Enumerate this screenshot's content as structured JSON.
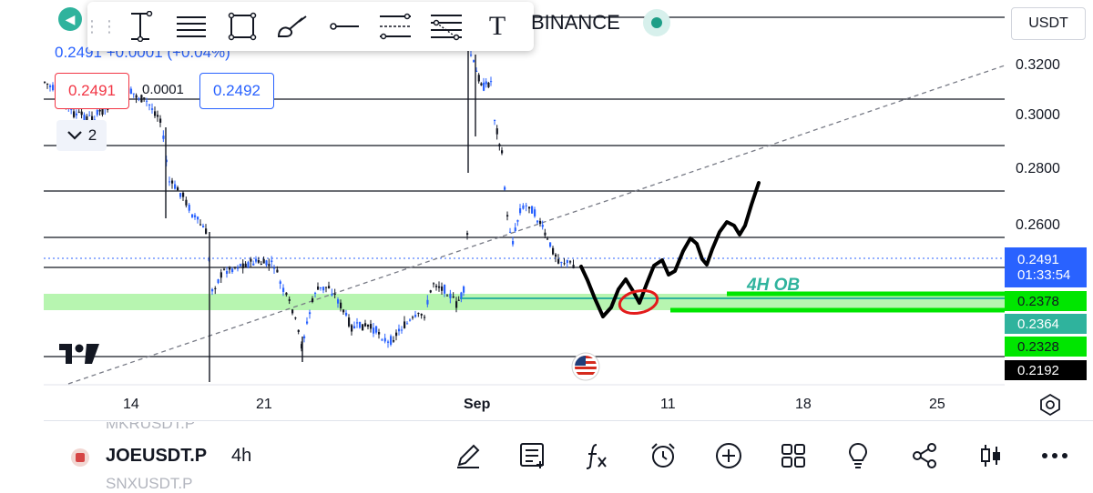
{
  "toolbar": {
    "tools": [
      "vertical-cursor-icon",
      "horizontal-lines-icon",
      "rectangle-icon",
      "brush-icon",
      "horizontal-ray-icon",
      "parallel-channel-icon",
      "fib-retracement-icon",
      "text-icon"
    ],
    "text_tool_glyph": "T",
    "drag_glyph": "⋮⋮"
  },
  "header": {
    "exchange": "BINANCE",
    "currency": "USDT",
    "price_change": "0.2491 +0.0001 (+0.04%)",
    "sell_price": "0.2491",
    "spread": "0.0001",
    "buy_price": "0.2492",
    "indicator_count": "2"
  },
  "price_axis": {
    "ticks": [
      "0.3200",
      "0.3000",
      "0.2800",
      "0.2600"
    ],
    "labels": [
      {
        "value": "0.2491",
        "sub": "01:33:54",
        "bg": "#2962ff",
        "color": "#ffffff"
      },
      {
        "value": "0.2378",
        "bg": "#00e600",
        "color": "#131722"
      },
      {
        "value": "0.2364",
        "bg": "#2fb39d",
        "color": "#ffffff"
      },
      {
        "value": "0.2328",
        "bg": "#00e600",
        "color": "#131722"
      },
      {
        "value": "0.2192",
        "bg": "#000000",
        "color": "#ffffff"
      }
    ]
  },
  "time_axis": {
    "labels": [
      "14",
      "21",
      "Sep",
      "11",
      "18",
      "25"
    ]
  },
  "annotations": {
    "ob_label": "4H OB",
    "ob_color": "#00e600",
    "zone_color": "#b7f5b0"
  },
  "bottom_bar": {
    "prev_symbol": "MKRUSDT.P",
    "symbol": "JOEUSDT.P",
    "interval": "4h",
    "next_symbol": "SNXUSDT.P",
    "icons": [
      "draw-icon",
      "add-note-icon",
      "indicators-icon",
      "alert-icon",
      "compare-icon",
      "layouts-icon",
      "ideas-icon",
      "share-icon",
      "chart-type-icon",
      "more-icon"
    ]
  },
  "colors": {
    "up": "#2962ff",
    "down": "#131722",
    "accent": "#2962ff",
    "sell": "#f23645"
  }
}
